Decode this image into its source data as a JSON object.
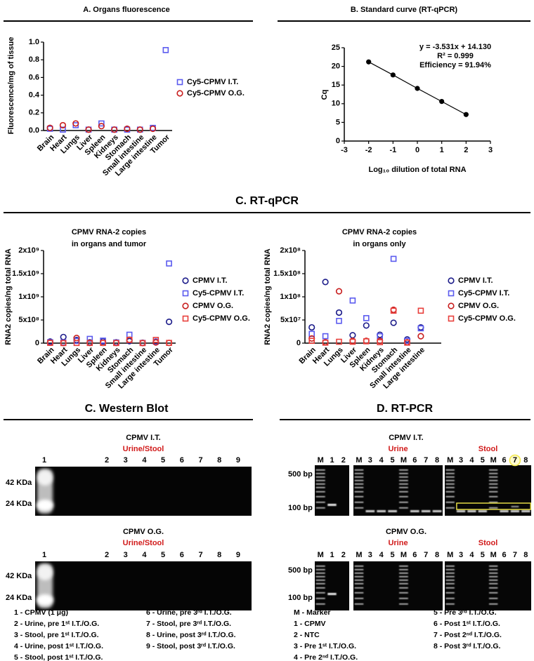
{
  "chart_data": [
    {
      "type": "dot",
      "title": "A. Organs fluorescence",
      "ylabel": "Fluorescence/mg of tissue",
      "categories": [
        "Brain",
        "Heart",
        "Lungs",
        "Liver",
        "Spleen",
        "Kidneys",
        "Stomach",
        "Small intestine",
        "Large intestine",
        "Tumor"
      ],
      "series": [
        {
          "name": "Cy5-CPMV I.T.",
          "color": "#5b5bef",
          "marker": "square",
          "values": [
            0.02,
            0.01,
            0.06,
            0.01,
            0.08,
            0.01,
            0.01,
            0.01,
            0.03,
            0.91
          ]
        },
        {
          "name": "Cy5-CPMV O.G.",
          "color": "#c81e1e",
          "marker": "circle",
          "values": [
            0.03,
            0.06,
            0.08,
            0.01,
            0.05,
            0.01,
            0.02,
            0.01,
            0.02,
            null
          ]
        }
      ],
      "ylim": [
        0,
        1
      ],
      "yticks": [
        {
          "value": 0,
          "label": "0.0"
        },
        0.2,
        0.4,
        0.6,
        0.8,
        {
          "value": 1,
          "label": "1.0"
        }
      ]
    },
    {
      "type": "line",
      "title": "B. Standard curve (RT-qPCR)",
      "xlabel": "Log₁₀ dilution of total RNA",
      "ylabel": "Cq",
      "x": [
        -2,
        -1,
        0,
        1,
        2
      ],
      "values": [
        21.2,
        17.7,
        14.1,
        10.6,
        7.1
      ],
      "color": "#000000",
      "xlim": [
        -3,
        3
      ],
      "xticks": [
        -3,
        -2,
        -1,
        0,
        1,
        2,
        3
      ],
      "ylim": [
        0,
        25
      ],
      "yticks": [
        0,
        5,
        10,
        15,
        20,
        25
      ],
      "annotations": [
        "y = -3.531x + 14.130",
        "R² = 0.999",
        "Efficiency = 91.94%"
      ]
    },
    {
      "type": "dot",
      "title": [
        "CPMV RNA-2 copies",
        "in organs and tumor"
      ],
      "ylabel": "RNA2 copies/ng total RNA",
      "categories": [
        "Brain",
        "Heart",
        "Lungs",
        "Liver",
        "Spleen",
        "Kidneys",
        "Stomach",
        "Small intestine",
        "Large intestine",
        "Tumor"
      ],
      "series": [
        {
          "name": "CPMV I.T.",
          "color": "#1c1c8a",
          "marker": "circle",
          "values": [
            34000000.0,
            132000000.0,
            66000000.0,
            17000000.0,
            38000000.0,
            18000000.0,
            44000000.0,
            8000000.0,
            34000000.0,
            460000000.0
          ]
        },
        {
          "name": "Cy5-CPMV I.T.",
          "color": "#5b5bef",
          "marker": "square",
          "values": [
            20000000.0,
            15000000.0,
            48000000.0,
            92000000.0,
            54000000.0,
            15000000.0,
            182000000.0,
            5000000.0,
            32000000.0,
            1720000000.0
          ]
        },
        {
          "name": "CPMV O.G.",
          "color": "#c81e1e",
          "marker": "circle",
          "values": [
            10000000.0,
            2000000.0,
            112000000.0,
            5000000.0,
            5000000.0,
            5000000.0,
            72000000.0,
            2000000.0,
            15000000.0,
            5000000.0
          ]
        },
        {
          "name": "Cy5-CPMV O.G.",
          "color": "#e8403c",
          "marker": "square",
          "values": [
            5000000.0,
            1000000.0,
            3000000.0,
            3000000.0,
            4000000.0,
            2000000.0,
            70000000.0,
            1000000.0,
            70000000.0,
            5000000.0
          ]
        }
      ],
      "ylim": [
        0,
        2000000000.0
      ],
      "yticks": [
        0,
        {
          "value": 500000000.0,
          "label": "5x10⁸"
        },
        {
          "value": 1000000000.0,
          "label": "1x10⁹"
        },
        {
          "value": 1500000000.0,
          "label": "1.5x10⁹"
        },
        {
          "value": 2000000000.0,
          "label": "2x10⁹"
        }
      ]
    },
    {
      "type": "dot",
      "title": [
        "CPMV RNA-2 copies",
        "in organs only"
      ],
      "ylabel": "RNA2 copies/ng total RNA",
      "categories": [
        "Brain",
        "Heart",
        "Lungs",
        "Liver",
        "Spleen",
        "Kidneys",
        "Stomach",
        "Small intestine",
        "Large intestine"
      ],
      "series": [
        {
          "name": "CPMV I.T.",
          "color": "#1c1c8a",
          "marker": "circle",
          "values": [
            34000000.0,
            132000000.0,
            66000000.0,
            17000000.0,
            38000000.0,
            18000000.0,
            44000000.0,
            8000000.0,
            34000000.0
          ]
        },
        {
          "name": "Cy5-CPMV I.T.",
          "color": "#5b5bef",
          "marker": "square",
          "values": [
            20000000.0,
            15000000.0,
            48000000.0,
            92000000.0,
            54000000.0,
            15000000.0,
            182000000.0,
            5000000.0,
            32000000.0
          ]
        },
        {
          "name": "CPMV O.G.",
          "color": "#c81e1e",
          "marker": "circle",
          "values": [
            10000000.0,
            2000000.0,
            112000000.0,
            5000000.0,
            5000000.0,
            5000000.0,
            72000000.0,
            2000000.0,
            15000000.0
          ]
        },
        {
          "name": "Cy5-CPMV O.G.",
          "color": "#e8403c",
          "marker": "square",
          "values": [
            5000000.0,
            1000000.0,
            3000000.0,
            3000000.0,
            4000000.0,
            2000000.0,
            70000000.0,
            1000000.0,
            70000000.0
          ]
        }
      ],
      "ylim": [
        0,
        200000000.0
      ],
      "yticks": [
        0,
        {
          "value": 50000000.0,
          "label": "5x10⁷"
        },
        {
          "value": 100000000.0,
          "label": "1x10⁸"
        },
        {
          "value": 150000000.0,
          "label": "1.5x10⁸"
        },
        {
          "value": 200000000.0,
          "label": "2x10⁸"
        }
      ]
    }
  ],
  "section_title": "C. RT-qPCR",
  "western_blot": {
    "title": "C. Western Blot",
    "blots": [
      {
        "label": "CPMV I.T.",
        "sample": "Urine/Stool",
        "lanes": [
          "1",
          "2",
          "3",
          "4",
          "5",
          "6",
          "7",
          "8",
          "9"
        ],
        "markers": [
          "42 KDa",
          "24 KDa"
        ]
      },
      {
        "label": "CPMV O.G.",
        "sample": "Urine/Stool",
        "lanes": [
          "1",
          "2",
          "3",
          "4",
          "5",
          "6",
          "7",
          "8",
          "9"
        ],
        "markers": [
          "42 KDa",
          "24 KDa"
        ]
      }
    ],
    "legend": [
      "1 - CPMV (1 μg)",
      "2 - Urine, pre 1ˢᵗ I.T./O.G.",
      "3 - Stool, pre 1ˢᵗ I.T./O.G.",
      "4 - Urine, post 1ˢᵗ I.T./O.G.",
      "5 - Stool, post 1ˢᵗ I.T./O.G.",
      "6 - Urine, pre 3ʳᵈ I.T./O.G.",
      "7 - Stool, pre 3ʳᵈ I.T./O.G.",
      "8 - Urine, post 3ʳᵈ I.T./O.G.",
      "9 - Stool, post 3ʳᵈ I.T./O.G."
    ]
  },
  "rt_pcr": {
    "title": "D. RT-PCR",
    "rows": [
      {
        "label": "CPMV I.T.",
        "groups": [
          "Urine",
          "Stool"
        ],
        "lanes": [
          [
            "M",
            "1",
            "2"
          ],
          [
            "M",
            "3",
            "4",
            "5",
            "M",
            "6",
            "7",
            "8"
          ],
          [
            "M",
            "3",
            "4",
            "5",
            "M",
            "6",
            "7",
            "8"
          ]
        ],
        "markers": [
          "500 bp",
          "100 bp"
        ]
      },
      {
        "label": "CPMV O.G.",
        "groups": [
          "Urine",
          "Stool"
        ],
        "lanes": [
          [
            "M",
            "1",
            "2"
          ],
          [
            "M",
            "3",
            "4",
            "5",
            "M",
            "6",
            "7",
            "8"
          ],
          [
            "M",
            "3",
            "4",
            "5",
            "M",
            "6",
            "7",
            "8"
          ]
        ],
        "markers": [
          "500 bp",
          "100 bp"
        ]
      }
    ],
    "legend": [
      "M - Marker",
      "1 - CPMV",
      "2 - NTC",
      "3 - Pre 1ˢᵗ I.T./O.G.",
      "4 - Pre 2ⁿᵈ I.T./O.G.",
      "5 - Pre 3ʳᵈ I.T./O.G.",
      "6 - Post 1ˢᵗ I.T./O.G.",
      "7 - Post 2ⁿᵈ I.T./O.G.",
      "8 - Post 3ʳᵈ I.T./O.G."
    ]
  }
}
